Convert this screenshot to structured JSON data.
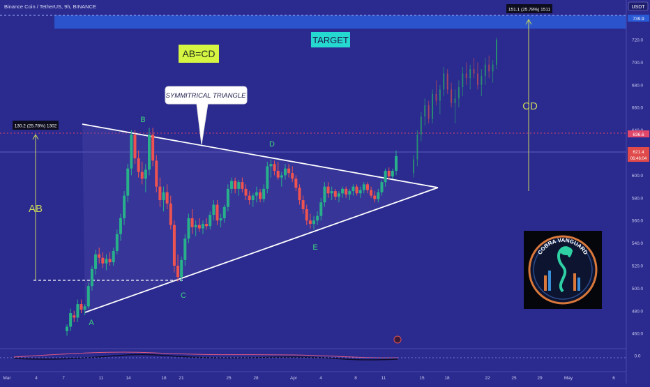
{
  "header": {
    "symbol_title": "Binance Coin / TetherUS, 9h, BINANCE",
    "currency_label": "USDT"
  },
  "price_axis": {
    "ticks": [
      "720.0",
      "700.0",
      "680.0",
      "660.0",
      "640.0",
      "620.0",
      "600.0",
      "580.0",
      "560.0",
      "540.0",
      "520.0",
      "500.0",
      "480.0",
      "460.0",
      "0.0"
    ]
  },
  "price_badges": {
    "top_zone": "739.9",
    "red_level": "636.6",
    "current_price": "621.4",
    "countdown": "06:46:04"
  },
  "time_axis": {
    "ticks": [
      "Mar",
      "4",
      "7",
      "11",
      "14",
      "18",
      "21",
      "25",
      "28",
      "Apr",
      "4",
      "8",
      "11",
      "15",
      "18",
      "22",
      "25",
      "29",
      "May",
      "6"
    ]
  },
  "annotations": {
    "abcd": "AB=CD",
    "target": "TARGET",
    "triangle": "SYMMITRICAL TRIANGLE",
    "ab": "AB",
    "cd": "CD",
    "ab_measure": "130.2 (25.78%) 1302",
    "cd_measure": "151.1 (25.78%) 1511",
    "points": {
      "a": "A",
      "b": "B",
      "c": "C",
      "d": "D",
      "e": "E"
    }
  },
  "logo": {
    "text": "COBRA VANGUARD"
  },
  "colors": {
    "background": "#2b2a8f",
    "bull": "#27b08a",
    "bear": "#ef5350",
    "target_zone": "#2a5bd7",
    "abcd_label_bg": "#d6f542",
    "target_label_bg": "#26d9d0",
    "measure_line": "#c9d65b",
    "point_label": "#3fd67f"
  },
  "chart_data": {
    "type": "candlestick",
    "title": "Binance Coin / TetherUS, 9h, BINANCE",
    "y_range": [
      448,
      744
    ],
    "x_date_ticks": [
      "Mar",
      "4",
      "7",
      "11",
      "14",
      "18",
      "21",
      "25",
      "28",
      "Apr",
      "4",
      "8",
      "11",
      "15",
      "18",
      "22",
      "25",
      "29",
      "May",
      "6"
    ],
    "key_levels": {
      "target_zone": [
        729,
        744
      ],
      "red_level": 636.6,
      "current_price": 621.4,
      "ab_base": 508
    },
    "pattern_points": {
      "A": 478,
      "B": 642,
      "C": 506,
      "D": 614,
      "E": 553
    },
    "candles": [
      {
        "o": 462,
        "h": 468,
        "l": 458,
        "c": 466
      },
      {
        "o": 466,
        "h": 482,
        "l": 462,
        "c": 478
      },
      {
        "o": 476,
        "h": 480,
        "l": 470,
        "c": 474
      },
      {
        "o": 474,
        "h": 490,
        "l": 470,
        "c": 486
      },
      {
        "o": 486,
        "h": 490,
        "l": 478,
        "c": 481
      },
      {
        "o": 481,
        "h": 486,
        "l": 476,
        "c": 484
      },
      {
        "o": 484,
        "h": 505,
        "l": 482,
        "c": 502
      },
      {
        "o": 502,
        "h": 520,
        "l": 498,
        "c": 517
      },
      {
        "o": 517,
        "h": 534,
        "l": 512,
        "c": 530
      },
      {
        "o": 530,
        "h": 536,
        "l": 522,
        "c": 527
      },
      {
        "o": 527,
        "h": 532,
        "l": 518,
        "c": 522
      },
      {
        "o": 522,
        "h": 530,
        "l": 516,
        "c": 526
      },
      {
        "o": 526,
        "h": 532,
        "l": 520,
        "c": 523
      },
      {
        "o": 523,
        "h": 536,
        "l": 520,
        "c": 533
      },
      {
        "o": 533,
        "h": 552,
        "l": 530,
        "c": 548
      },
      {
        "o": 548,
        "h": 566,
        "l": 542,
        "c": 562
      },
      {
        "o": 562,
        "h": 586,
        "l": 556,
        "c": 582
      },
      {
        "o": 582,
        "h": 610,
        "l": 576,
        "c": 606
      },
      {
        "o": 606,
        "h": 640,
        "l": 600,
        "c": 636
      },
      {
        "o": 636,
        "h": 640,
        "l": 610,
        "c": 615
      },
      {
        "o": 615,
        "h": 622,
        "l": 598,
        "c": 603
      },
      {
        "o": 603,
        "h": 612,
        "l": 592,
        "c": 597
      },
      {
        "o": 597,
        "h": 610,
        "l": 585,
        "c": 605
      },
      {
        "o": 605,
        "h": 642,
        "l": 600,
        "c": 636
      },
      {
        "o": 636,
        "h": 642,
        "l": 608,
        "c": 613
      },
      {
        "o": 613,
        "h": 618,
        "l": 585,
        "c": 590
      },
      {
        "o": 590,
        "h": 598,
        "l": 572,
        "c": 578
      },
      {
        "o": 578,
        "h": 590,
        "l": 568,
        "c": 585
      },
      {
        "o": 585,
        "h": 592,
        "l": 570,
        "c": 575
      },
      {
        "o": 575,
        "h": 582,
        "l": 552,
        "c": 556
      },
      {
        "o": 556,
        "h": 560,
        "l": 514,
        "c": 520
      },
      {
        "o": 520,
        "h": 530,
        "l": 506,
        "c": 510
      },
      {
        "o": 510,
        "h": 528,
        "l": 506,
        "c": 525
      },
      {
        "o": 525,
        "h": 548,
        "l": 520,
        "c": 544
      },
      {
        "o": 544,
        "h": 566,
        "l": 540,
        "c": 562
      },
      {
        "o": 562,
        "h": 570,
        "l": 548,
        "c": 554
      },
      {
        "o": 554,
        "h": 560,
        "l": 546,
        "c": 556
      },
      {
        "o": 556,
        "h": 562,
        "l": 550,
        "c": 553
      },
      {
        "o": 553,
        "h": 560,
        "l": 548,
        "c": 557
      },
      {
        "o": 557,
        "h": 562,
        "l": 552,
        "c": 555
      },
      {
        "o": 555,
        "h": 568,
        "l": 552,
        "c": 565
      },
      {
        "o": 565,
        "h": 578,
        "l": 560,
        "c": 574
      },
      {
        "o": 574,
        "h": 578,
        "l": 556,
        "c": 560
      },
      {
        "o": 560,
        "h": 566,
        "l": 554,
        "c": 562
      },
      {
        "o": 562,
        "h": 574,
        "l": 558,
        "c": 572
      },
      {
        "o": 572,
        "h": 592,
        "l": 568,
        "c": 588
      },
      {
        "o": 588,
        "h": 598,
        "l": 584,
        "c": 595
      },
      {
        "o": 595,
        "h": 598,
        "l": 584,
        "c": 588
      },
      {
        "o": 588,
        "h": 596,
        "l": 582,
        "c": 594
      },
      {
        "o": 594,
        "h": 598,
        "l": 585,
        "c": 588
      },
      {
        "o": 588,
        "h": 592,
        "l": 578,
        "c": 582
      },
      {
        "o": 582,
        "h": 586,
        "l": 574,
        "c": 578
      },
      {
        "o": 578,
        "h": 584,
        "l": 572,
        "c": 582
      },
      {
        "o": 582,
        "h": 590,
        "l": 576,
        "c": 585
      },
      {
        "o": 585,
        "h": 588,
        "l": 576,
        "c": 579
      },
      {
        "o": 579,
        "h": 592,
        "l": 576,
        "c": 588
      },
      {
        "o": 588,
        "h": 612,
        "l": 584,
        "c": 608
      },
      {
        "o": 608,
        "h": 614,
        "l": 598,
        "c": 610
      },
      {
        "o": 610,
        "h": 613,
        "l": 600,
        "c": 604
      },
      {
        "o": 604,
        "h": 612,
        "l": 596,
        "c": 598
      },
      {
        "o": 598,
        "h": 603,
        "l": 590,
        "c": 600
      },
      {
        "o": 600,
        "h": 610,
        "l": 596,
        "c": 606
      },
      {
        "o": 606,
        "h": 610,
        "l": 598,
        "c": 602
      },
      {
        "o": 602,
        "h": 608,
        "l": 594,
        "c": 597
      },
      {
        "o": 597,
        "h": 600,
        "l": 586,
        "c": 589
      },
      {
        "o": 589,
        "h": 592,
        "l": 574,
        "c": 578
      },
      {
        "o": 578,
        "h": 582,
        "l": 566,
        "c": 570
      },
      {
        "o": 570,
        "h": 574,
        "l": 556,
        "c": 560
      },
      {
        "o": 560,
        "h": 566,
        "l": 553,
        "c": 557
      },
      {
        "o": 557,
        "h": 564,
        "l": 552,
        "c": 560
      },
      {
        "o": 560,
        "h": 568,
        "l": 556,
        "c": 564
      },
      {
        "o": 564,
        "h": 580,
        "l": 560,
        "c": 576
      },
      {
        "o": 576,
        "h": 594,
        "l": 572,
        "c": 590
      },
      {
        "o": 590,
        "h": 594,
        "l": 580,
        "c": 584
      },
      {
        "o": 584,
        "h": 590,
        "l": 578,
        "c": 586
      },
      {
        "o": 586,
        "h": 588,
        "l": 578,
        "c": 581
      },
      {
        "o": 581,
        "h": 586,
        "l": 576,
        "c": 584
      },
      {
        "o": 584,
        "h": 590,
        "l": 580,
        "c": 588
      },
      {
        "o": 588,
        "h": 590,
        "l": 580,
        "c": 583
      },
      {
        "o": 583,
        "h": 588,
        "l": 578,
        "c": 586
      },
      {
        "o": 586,
        "h": 592,
        "l": 582,
        "c": 590
      },
      {
        "o": 590,
        "h": 592,
        "l": 582,
        "c": 584
      },
      {
        "o": 584,
        "h": 590,
        "l": 580,
        "c": 587
      },
      {
        "o": 587,
        "h": 594,
        "l": 584,
        "c": 592
      },
      {
        "o": 592,
        "h": 594,
        "l": 584,
        "c": 587
      },
      {
        "o": 587,
        "h": 590,
        "l": 580,
        "c": 582
      },
      {
        "o": 582,
        "h": 586,
        "l": 576,
        "c": 579
      },
      {
        "o": 579,
        "h": 588,
        "l": 576,
        "c": 585
      },
      {
        "o": 585,
        "h": 596,
        "l": 582,
        "c": 594
      },
      {
        "o": 594,
        "h": 606,
        "l": 590,
        "c": 604
      },
      {
        "o": 604,
        "h": 607,
        "l": 596,
        "c": 599
      },
      {
        "o": 599,
        "h": 606,
        "l": 597,
        "c": 604
      },
      {
        "o": 604,
        "h": 622,
        "l": 600,
        "c": 617
      }
    ],
    "projection_candles": [
      {
        "o": 602,
        "h": 618,
        "l": 598,
        "c": 614
      },
      {
        "o": 614,
        "h": 640,
        "l": 608,
        "c": 636
      },
      {
        "o": 636,
        "h": 656,
        "l": 630,
        "c": 652
      },
      {
        "o": 652,
        "h": 668,
        "l": 644,
        "c": 662
      },
      {
        "o": 662,
        "h": 666,
        "l": 646,
        "c": 650
      },
      {
        "o": 650,
        "h": 676,
        "l": 646,
        "c": 672
      },
      {
        "o": 672,
        "h": 684,
        "l": 662,
        "c": 666
      },
      {
        "o": 666,
        "h": 680,
        "l": 654,
        "c": 676
      },
      {
        "o": 676,
        "h": 696,
        "l": 670,
        "c": 690
      },
      {
        "o": 690,
        "h": 694,
        "l": 672,
        "c": 676
      },
      {
        "o": 676,
        "h": 682,
        "l": 660,
        "c": 664
      },
      {
        "o": 664,
        "h": 676,
        "l": 646,
        "c": 668
      },
      {
        "o": 668,
        "h": 684,
        "l": 660,
        "c": 678
      },
      {
        "o": 678,
        "h": 696,
        "l": 670,
        "c": 690
      },
      {
        "o": 690,
        "h": 700,
        "l": 680,
        "c": 686
      },
      {
        "o": 686,
        "h": 698,
        "l": 676,
        "c": 694
      },
      {
        "o": 694,
        "h": 704,
        "l": 686,
        "c": 690
      },
      {
        "o": 690,
        "h": 700,
        "l": 676,
        "c": 680
      },
      {
        "o": 680,
        "h": 694,
        "l": 670,
        "c": 688
      },
      {
        "o": 688,
        "h": 704,
        "l": 680,
        "c": 698
      },
      {
        "o": 698,
        "h": 706,
        "l": 686,
        "c": 692
      },
      {
        "o": 692,
        "h": 702,
        "l": 682,
        "c": 698
      },
      {
        "o": 698,
        "h": 722,
        "l": 694,
        "c": 720
      }
    ]
  }
}
